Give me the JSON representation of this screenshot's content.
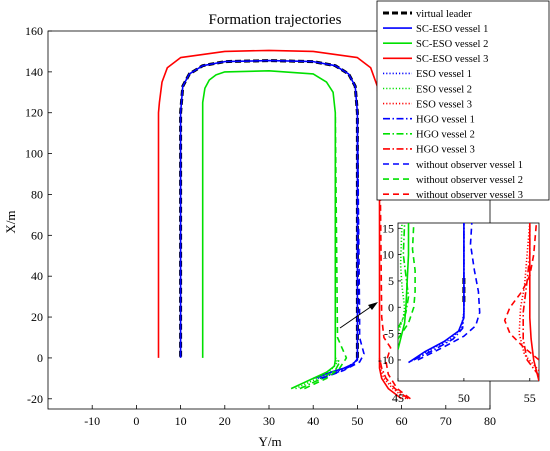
{
  "chart_data": {
    "type": "line",
    "title": "Formation trajectories",
    "xlabel": "Y/m",
    "ylabel": "X/m",
    "xlim": [
      -20,
      80
    ],
    "ylim": [
      -25,
      160
    ],
    "xticks": [
      "-10",
      "0",
      "10",
      "20",
      "30",
      "40",
      "50",
      "60",
      "70",
      "80"
    ],
    "xtick_values": [
      -10,
      0,
      10,
      20,
      30,
      40,
      50,
      60,
      70,
      80
    ],
    "yticks": [
      "-20",
      "0",
      "20",
      "40",
      "60",
      "80",
      "100",
      "120",
      "140",
      "160"
    ],
    "ytick_values": [
      -20,
      0,
      20,
      40,
      60,
      80,
      100,
      120,
      140,
      160
    ],
    "grid": false,
    "legend_position": "top-right",
    "legend": [
      {
        "name": "virtual leader",
        "color": "#000000",
        "dash": "solid-thick"
      },
      {
        "name": "SC-ESO vessel 1",
        "color": "#0000ff",
        "dash": "solid"
      },
      {
        "name": "SC-ESO vessel 2",
        "color": "#00e000",
        "dash": "solid"
      },
      {
        "name": "SC-ESO vessel 3",
        "color": "#ff0000",
        "dash": "solid"
      },
      {
        "name": "ESO vessel 1",
        "color": "#0000ff",
        "dash": "dotted"
      },
      {
        "name": "ESO vessel 2",
        "color": "#00e000",
        "dash": "dotted"
      },
      {
        "name": "ESO vessel 3",
        "color": "#ff0000",
        "dash": "dotted"
      },
      {
        "name": "HGO vessel 1",
        "color": "#0000ff",
        "dash": "dashdot"
      },
      {
        "name": "HGO vessel 2",
        "color": "#00e000",
        "dash": "dashdot"
      },
      {
        "name": "HGO vessel 3",
        "color": "#ff0000",
        "dash": "dashdot"
      },
      {
        "name": "without observer vessel 1",
        "color": "#0000ff",
        "dash": "dashed"
      },
      {
        "name": "without observer vessel 2",
        "color": "#00e000",
        "dash": "dashed"
      },
      {
        "name": "without observer vessel 3",
        "color": "#ff0000",
        "dash": "dashed"
      }
    ],
    "series": [
      {
        "name": "virtual leader",
        "x": [
          50,
          50,
          49.5,
          48,
          45,
          40,
          30,
          20,
          15,
          12,
          10.5,
          10,
          10
        ],
        "y": [
          0,
          120,
          133,
          139,
          143,
          145,
          145.5,
          145,
          143,
          139,
          133,
          120,
          0
        ]
      },
      {
        "name": "SC-ESO vessel 1",
        "x": [
          40,
          44,
          47,
          49,
          49.8,
          50,
          50,
          49.5,
          48,
          45,
          40,
          30,
          20,
          15,
          12,
          10.5,
          10,
          10
        ],
        "y": [
          -10,
          -7,
          -5,
          -3,
          -1,
          0,
          120,
          133,
          139,
          143,
          145,
          145.5,
          145,
          143,
          139,
          133,
          120,
          0
        ]
      },
      {
        "name": "SC-ESO vessel 2",
        "x": [
          35,
          40,
          43,
          44.8,
          45,
          45,
          44.5,
          43,
          40,
          30,
          20,
          18,
          16.5,
          15.5,
          15,
          15
        ],
        "y": [
          -15,
          -10,
          -7,
          -4,
          -1,
          120,
          130,
          135,
          139,
          140.5,
          140,
          138.5,
          136,
          132,
          125,
          0
        ]
      },
      {
        "name": "SC-ESO vessel 3",
        "x": [
          60,
          57,
          55.5,
          55,
          55,
          54.5,
          53,
          50,
          40,
          30,
          20,
          10,
          7,
          5.8,
          5.2,
          5,
          5
        ],
        "y": [
          -20,
          -15,
          -10,
          -5,
          120,
          133,
          142,
          147,
          150,
          150.5,
          150,
          147,
          142,
          135,
          125,
          120,
          0
        ]
      },
      {
        "name": "ESO vessel 1",
        "x": [
          41,
          45,
          48,
          49.5,
          50
        ],
        "y": [
          -10,
          -7,
          -4,
          -2,
          0
        ]
      },
      {
        "name": "ESO vessel 2",
        "x": [
          36,
          41,
          44,
          45.5,
          45
        ],
        "y": [
          -15,
          -10,
          -6,
          -2,
          0
        ]
      },
      {
        "name": "ESO vessel 3",
        "x": [
          61,
          58,
          56,
          55.2,
          55
        ],
        "y": [
          -20,
          -15,
          -10,
          -5,
          0
        ]
      },
      {
        "name": "HGO vessel 1",
        "x": [
          41.5,
          45.5,
          48.5,
          50,
          50
        ],
        "y": [
          -10,
          -7,
          -4,
          -1,
          0
        ]
      },
      {
        "name": "HGO vessel 2",
        "x": [
          37,
          42,
          45,
          46,
          45
        ],
        "y": [
          -15,
          -10,
          -6,
          -2,
          0
        ]
      },
      {
        "name": "HGO vessel 3",
        "x": [
          61.5,
          58.5,
          56.5,
          55.5,
          55
        ],
        "y": [
          -20,
          -15,
          -10,
          -5,
          0
        ]
      },
      {
        "name": "without observer vessel 1",
        "x": [
          42,
          47,
          50.5,
          51.5,
          51,
          50.5,
          50.5,
          50
        ],
        "y": [
          -10,
          -6,
          -2,
          2,
          6,
          10,
          20,
          120
        ]
      },
      {
        "name": "without observer vessel 2",
        "x": [
          38,
          43,
          46,
          47.5,
          46.5,
          45.5,
          45
        ],
        "y": [
          -15,
          -10,
          -5,
          0,
          5,
          10,
          120
        ]
      },
      {
        "name": "without observer vessel 3",
        "x": [
          62,
          59,
          57,
          56.5,
          57.5,
          56,
          55.5,
          55
        ],
        "y": [
          -20,
          -15,
          -8,
          -2,
          5,
          10,
          20,
          120
        ]
      }
    ],
    "inset": {
      "xlim": [
        45,
        55.7
      ],
      "ylim": [
        -14,
        16
      ],
      "xticks": [
        "45",
        "50",
        "55"
      ],
      "xtick_values": [
        45,
        50,
        55
      ],
      "yticks": [
        "-10",
        "-5",
        "0",
        "5",
        "10",
        "15"
      ],
      "ytick_values": [
        -10,
        -5,
        0,
        5,
        10,
        15
      ],
      "series": [
        {
          "name": "virtual leader",
          "x": [
            50,
            50
          ],
          "y": [
            1,
            6
          ]
        },
        {
          "name": "SC-ESO vessel 1",
          "x": [
            45.8,
            47,
            48.5,
            49.6,
            50,
            50
          ],
          "y": [
            -10.5,
            -8.5,
            -6.5,
            -4.5,
            -2,
            16
          ]
        },
        {
          "name": "SC-ESO vessel 2",
          "x": [
            45,
            45.2,
            45.5,
            45.6,
            45.7,
            45.8,
            45.8
          ],
          "y": [
            -8,
            -6,
            -3,
            0,
            5,
            10,
            16
          ]
        },
        {
          "name": "SC-ESO vessel 3",
          "x": [
            55.7,
            55.3,
            55.1,
            55,
            55,
            55
          ],
          "y": [
            -14,
            -10,
            -6,
            -2,
            5,
            16
          ]
        },
        {
          "name": "ESO vessel 1",
          "x": [
            46,
            47.5,
            49,
            49.8,
            50,
            50
          ],
          "y": [
            -10.2,
            -8,
            -6,
            -4,
            -1,
            16
          ]
        },
        {
          "name": "ESO vessel 2",
          "x": [
            45,
            45.4,
            45.5,
            45.3,
            45.2,
            45.3
          ],
          "y": [
            -5,
            -2,
            0,
            4,
            8,
            16
          ]
        },
        {
          "name": "ESO vessel 3",
          "x": [
            55.7,
            54.6,
            54.2,
            54.3,
            54.6,
            54.8,
            55
          ],
          "y": [
            -12,
            -9,
            -5,
            0,
            4,
            10,
            16
          ]
        },
        {
          "name": "HGO vessel 1",
          "x": [
            46.2,
            47.8,
            49.2,
            49.9,
            50,
            50
          ],
          "y": [
            -10,
            -8,
            -6,
            -4,
            -1,
            16
          ]
        },
        {
          "name": "HGO vessel 2",
          "x": [
            45,
            45.6,
            45.8,
            45.6,
            45.4,
            45.5
          ],
          "y": [
            -4,
            -1,
            2,
            6,
            10,
            16
          ]
        },
        {
          "name": "HGO vessel 3",
          "x": [
            55.7,
            54.8,
            54.5,
            54.5,
            54.8,
            55,
            55
          ],
          "y": [
            -13,
            -10,
            -6,
            -1,
            5,
            10,
            16
          ]
        },
        {
          "name": "without observer vessel 1",
          "x": [
            46.5,
            48.5,
            50,
            50.9,
            51.2,
            51.1,
            50.8,
            50.5,
            50.6
          ],
          "y": [
            -10,
            -7.5,
            -5.5,
            -3.5,
            -1,
            3,
            7,
            12,
            16
          ]
        },
        {
          "name": "without observer vessel 2",
          "x": [
            45,
            45.8,
            46.2,
            46.3,
            46.3,
            46.1,
            46.2
          ],
          "y": [
            -6,
            -3,
            0,
            3,
            7,
            11,
            16
          ]
        },
        {
          "name": "without observer vessel 3",
          "x": [
            55.7,
            54.5,
            53.5,
            53.1,
            53.5,
            54.4,
            55,
            55.3,
            55.5
          ],
          "y": [
            -10,
            -7.5,
            -5,
            -2.5,
            0,
            3,
            6,
            10,
            16
          ]
        }
      ]
    }
  }
}
